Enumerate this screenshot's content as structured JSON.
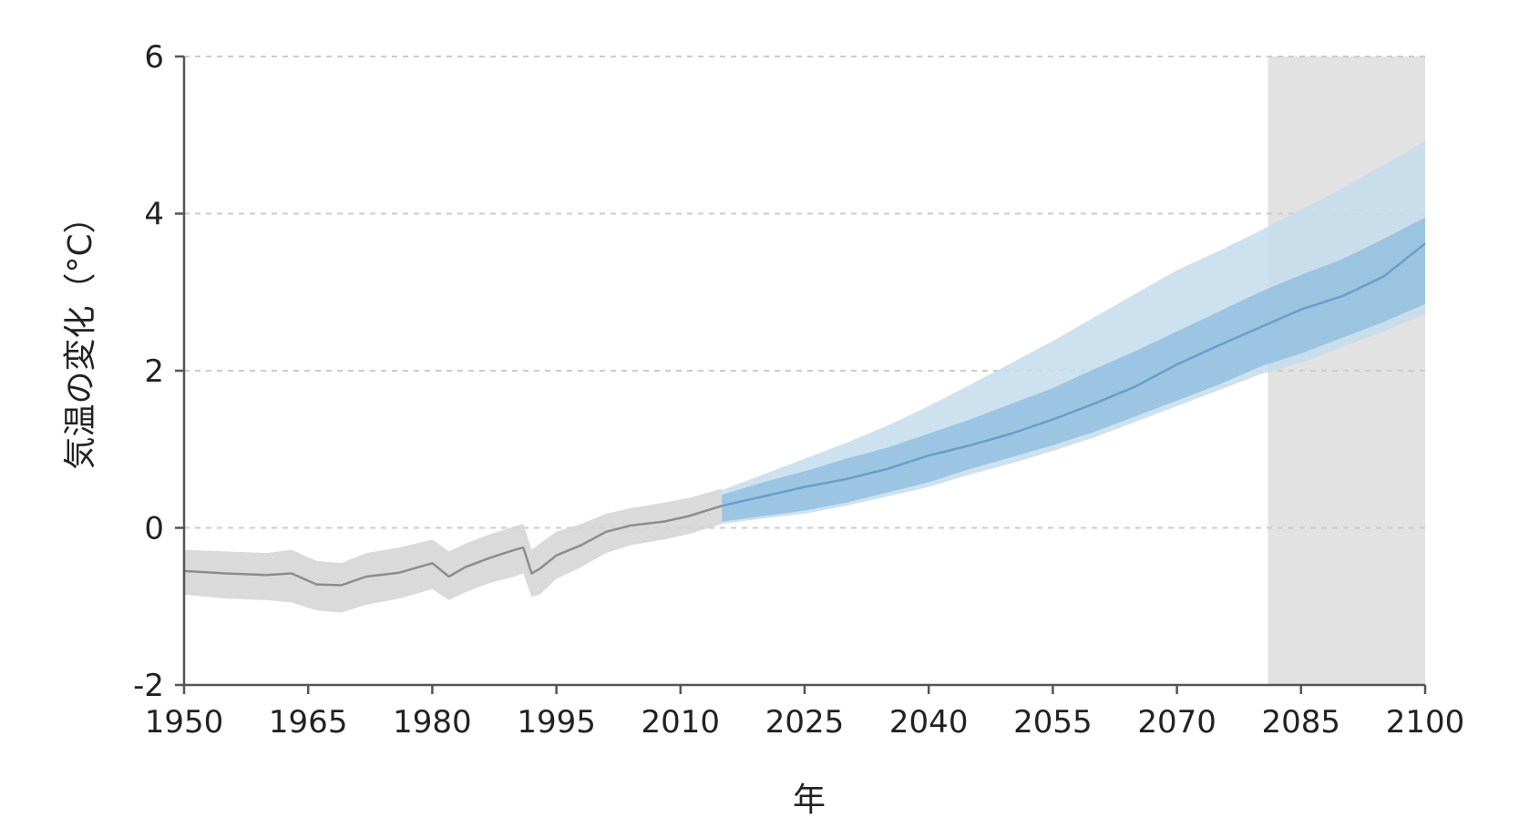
{
  "chart_data": {
    "type": "line",
    "title": "",
    "xlabel": "年",
    "ylabel": "気温の変化（°C）",
    "xlim": [
      1950,
      2100
    ],
    "ylim": [
      -2,
      6
    ],
    "xticks": [
      "1950",
      "1965",
      "1980",
      "1995",
      "2010",
      "2025",
      "2040",
      "2055",
      "2070",
      "2085",
      "2100"
    ],
    "yticks": [
      "-2",
      "0",
      "2",
      "4",
      "6"
    ],
    "grid": "horizontal dashed",
    "shaded_period": [
      2081,
      2100
    ],
    "series": [
      {
        "role": "historical",
        "color": "#8c8c8c",
        "band_color": "#d4d4d4",
        "x": [
          1950,
          1955,
          1960,
          1963,
          1966,
          1969,
          1972,
          1976,
          1980,
          1982,
          1984,
          1987,
          1990,
          1991,
          1992,
          1993,
          1995,
          1998,
          2001,
          2004,
          2008,
          2011,
          2015
        ],
        "y": [
          -0.55,
          -0.58,
          -0.6,
          -0.58,
          -0.72,
          -0.73,
          -0.62,
          -0.57,
          -0.45,
          -0.62,
          -0.5,
          -0.38,
          -0.28,
          -0.25,
          -0.58,
          -0.52,
          -0.35,
          -0.22,
          -0.05,
          0.03,
          0.08,
          0.15,
          0.28
        ],
        "low": [
          -0.85,
          -0.9,
          -0.92,
          -0.95,
          -1.05,
          -1.08,
          -0.98,
          -0.9,
          -0.78,
          -0.92,
          -0.82,
          -0.7,
          -0.62,
          -0.58,
          -0.88,
          -0.85,
          -0.65,
          -0.5,
          -0.32,
          -0.22,
          -0.15,
          -0.08,
          0.05
        ],
        "high": [
          -0.28,
          -0.3,
          -0.32,
          -0.28,
          -0.42,
          -0.45,
          -0.32,
          -0.25,
          -0.15,
          -0.3,
          -0.2,
          -0.08,
          0.02,
          0.05,
          -0.28,
          -0.2,
          -0.05,
          0.05,
          0.18,
          0.25,
          0.32,
          0.38,
          0.5
        ]
      },
      {
        "role": "projection",
        "color": "#6a9ec9",
        "band_color": "#c5dcec",
        "inner_band_color": "#8fbedf",
        "x": [
          2015,
          2020,
          2025,
          2030,
          2035,
          2040,
          2045,
          2050,
          2055,
          2060,
          2065,
          2070,
          2075,
          2080,
          2085,
          2090,
          2095,
          2100
        ],
        "y": [
          0.28,
          0.4,
          0.52,
          0.62,
          0.75,
          0.92,
          1.05,
          1.2,
          1.38,
          1.58,
          1.8,
          2.08,
          2.32,
          2.55,
          2.78,
          2.95,
          3.2,
          3.62
        ],
        "inner_low": [
          0.08,
          0.15,
          0.22,
          0.32,
          0.45,
          0.58,
          0.75,
          0.9,
          1.05,
          1.22,
          1.42,
          1.62,
          1.82,
          2.05,
          2.22,
          2.42,
          2.62,
          2.85
        ],
        "inner_high": [
          0.42,
          0.58,
          0.72,
          0.88,
          1.02,
          1.2,
          1.38,
          1.58,
          1.78,
          2.02,
          2.25,
          2.5,
          2.75,
          3.0,
          3.22,
          3.42,
          3.68,
          3.95
        ],
        "low": [
          0.05,
          0.12,
          0.18,
          0.28,
          0.4,
          0.52,
          0.68,
          0.82,
          0.98,
          1.15,
          1.35,
          1.55,
          1.75,
          1.95,
          2.1,
          2.3,
          2.5,
          2.72
        ],
        "high": [
          0.48,
          0.68,
          0.88,
          1.08,
          1.3,
          1.55,
          1.82,
          2.1,
          2.38,
          2.68,
          2.98,
          3.28,
          3.52,
          3.78,
          4.05,
          4.32,
          4.62,
          4.92
        ]
      }
    ]
  }
}
